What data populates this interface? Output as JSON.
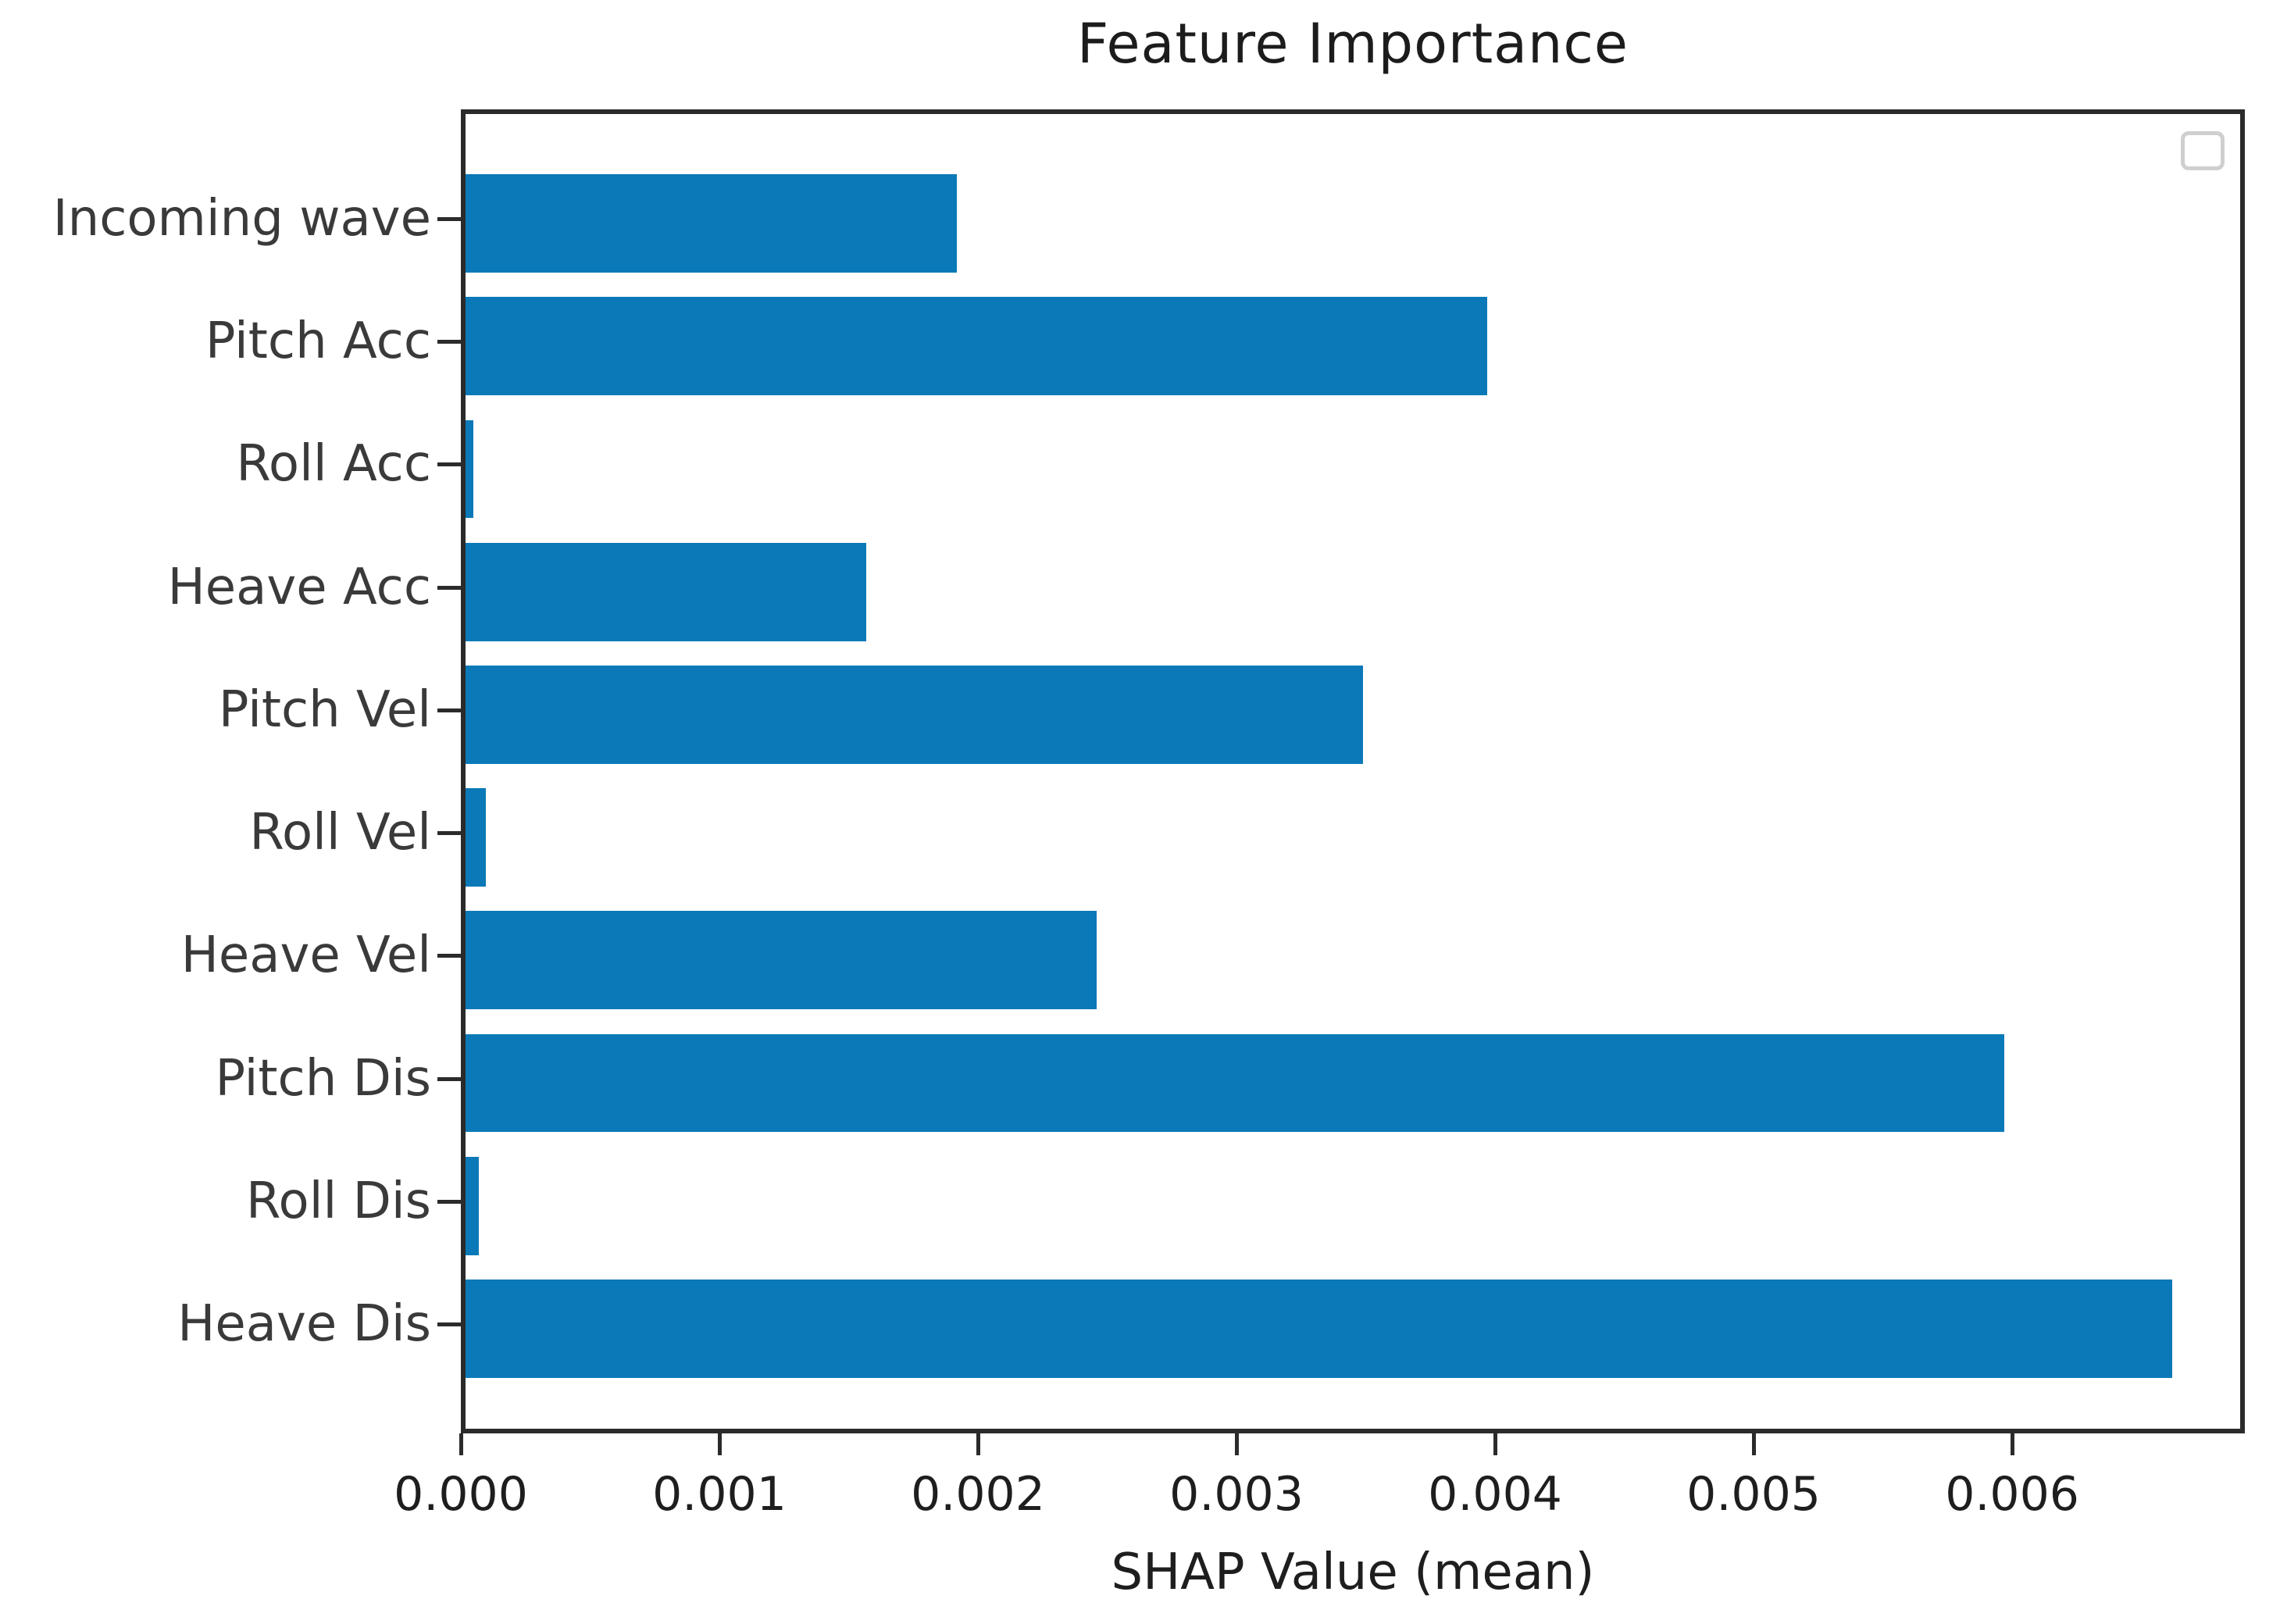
{
  "chart_data": {
    "type": "bar",
    "orientation": "horizontal",
    "title": "Feature Importance",
    "xlabel": "SHAP Value (mean)",
    "ylabel": "",
    "categories": [
      "Incoming wave",
      "Pitch Acc",
      "Roll Acc",
      "Heave Acc",
      "Pitch Vel",
      "Roll Vel",
      "Heave Vel",
      "Pitch Dis",
      "Roll Dis",
      "Heave Dis"
    ],
    "values": [
      0.0019,
      0.00395,
      3e-05,
      0.00155,
      0.00347,
      8e-05,
      0.00244,
      0.00595,
      5e-05,
      0.0066
    ],
    "xlim": [
      0,
      0.0069
    ],
    "xtick_labels": [
      "0.000",
      "0.001",
      "0.002",
      "0.003",
      "0.004",
      "0.005",
      "0.006"
    ],
    "xtick_values": [
      0,
      0.001,
      0.002,
      0.003,
      0.004,
      0.005,
      0.006
    ],
    "bar_color": "#0b79b7",
    "spine_color": "#2b2b2b",
    "text_color": "#1e1e1e",
    "ytick_label_color": "#3a3a3a",
    "grid": false,
    "legend": {
      "present": true,
      "position": "upper-right",
      "entries": []
    }
  }
}
